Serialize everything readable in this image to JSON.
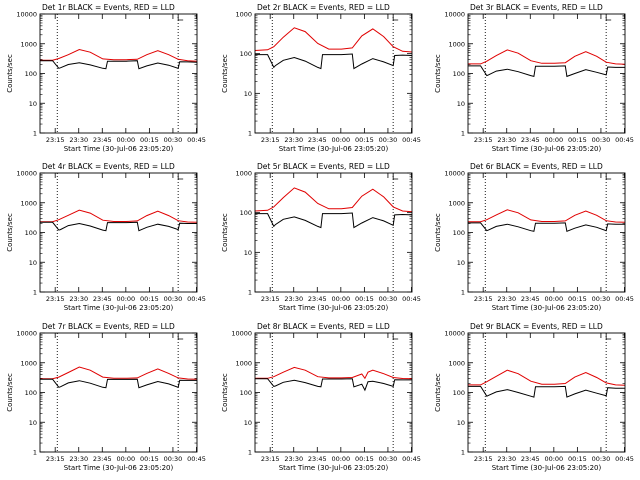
{
  "figure": {
    "colors": {
      "events": "#000000",
      "lld": "#e00000",
      "background": "#ffffff"
    },
    "panels_per_row": 3
  },
  "chart_data": [
    {
      "type": "line",
      "title": "Det 1r BLACK = Events, RED = LLD",
      "xlabel": "Start Time (30-Jul-06 23:05:20)",
      "ylabel": "Counts/sec",
      "yscale": "log",
      "ylim": [
        1,
        10000
      ],
      "ytick_labels": [
        "1",
        "10",
        "100",
        "1000",
        "10000"
      ],
      "xtick_labels": [
        "23:15",
        "23:30",
        "23:45",
        "00:00",
        "00:15",
        "00:30",
        "00:45"
      ],
      "x_unit": "minutes since 23:05:20",
      "xlim": [
        0,
        100
      ],
      "xtick_values": [
        9.67,
        24.67,
        39.67,
        54.67,
        69.67,
        84.67,
        99.67
      ],
      "vlines": [
        11,
        88
      ],
      "series": [
        {
          "name": "LLD",
          "x": [
            0,
            8,
            12,
            18,
            25,
            32,
            40,
            47,
            55,
            62,
            68,
            75,
            82,
            88,
            94,
            100
          ],
          "y": [
            280,
            280,
            320,
            430,
            640,
            520,
            310,
            290,
            290,
            300,
            430,
            590,
            430,
            300,
            270,
            260
          ]
        },
        {
          "name": "Events",
          "x": [
            0,
            8,
            12,
            13,
            18,
            25,
            32,
            40,
            42,
            43,
            55,
            62,
            63,
            68,
            75,
            82,
            88,
            89,
            94,
            100
          ],
          "y": [
            270,
            270,
            150,
            155,
            200,
            230,
            195,
            150,
            145,
            260,
            260,
            270,
            145,
            180,
            225,
            190,
            150,
            250,
            245,
            240
          ]
        }
      ]
    },
    {
      "type": "line",
      "title": "Det 2r BLACK = Events, RED = LLD",
      "xlabel": "Start Time (30-Jul-06 23:05:20)",
      "ylabel": "Counts/sec",
      "yscale": "log",
      "ylim": [
        1,
        1000
      ],
      "ytick_labels": [
        "1",
        "10",
        "100",
        "1000"
      ],
      "xtick_labels": [
        "23:15",
        "23:30",
        "23:45",
        "00:00",
        "00:15",
        "00:30",
        "00:45"
      ],
      "x_unit": "minutes since 23:05:20",
      "xlim": [
        0,
        100
      ],
      "xtick_values": [
        9.67,
        24.67,
        39.67,
        54.67,
        69.67,
        84.67,
        99.67
      ],
      "vlines": [
        11,
        88
      ],
      "series": [
        {
          "name": "LLD",
          "x": [
            0,
            8,
            12,
            18,
            25,
            32,
            40,
            47,
            55,
            62,
            68,
            75,
            82,
            88,
            94,
            100
          ],
          "y": [
            120,
            125,
            150,
            260,
            450,
            360,
            180,
            130,
            130,
            140,
            280,
            420,
            270,
            150,
            115,
            110
          ]
        },
        {
          "name": "Events",
          "x": [
            0,
            8,
            12,
            13,
            18,
            25,
            32,
            40,
            42,
            43,
            55,
            62,
            63,
            68,
            75,
            82,
            88,
            89,
            94,
            100
          ],
          "y": [
            95,
            95,
            45,
            50,
            68,
            80,
            65,
            45,
            42,
            95,
            95,
            98,
            42,
            55,
            75,
            62,
            50,
            90,
            92,
            90
          ]
        }
      ]
    },
    {
      "type": "line",
      "title": "Det 3r BLACK = Events, RED = LLD",
      "xlabel": "Start Time (30-Jul-06 23:05:20)",
      "ylabel": "Counts/sec",
      "yscale": "log",
      "ylim": [
        1,
        10000
      ],
      "ytick_labels": [
        "1",
        "10",
        "100",
        "1000",
        "10000"
      ],
      "xtick_labels": [
        "23:15",
        "23:30",
        "23:45",
        "00:00",
        "00:15",
        "00:30",
        "00:45"
      ],
      "x_unit": "minutes since 23:05:20",
      "xlim": [
        0,
        100
      ],
      "xtick_values": [
        9.67,
        24.67,
        39.67,
        54.67,
        69.67,
        84.67,
        99.67
      ],
      "vlines": [
        11,
        88
      ],
      "series": [
        {
          "name": "LLD",
          "x": [
            0,
            8,
            12,
            18,
            25,
            32,
            40,
            47,
            55,
            62,
            68,
            75,
            82,
            88,
            94,
            100
          ],
          "y": [
            210,
            210,
            260,
            400,
            620,
            480,
            270,
            220,
            220,
            230,
            380,
            540,
            380,
            240,
            210,
            205
          ]
        },
        {
          "name": "Events",
          "x": [
            0,
            8,
            12,
            13,
            18,
            25,
            32,
            40,
            42,
            43,
            55,
            62,
            63,
            68,
            75,
            82,
            88,
            89,
            94,
            100
          ],
          "y": [
            180,
            180,
            85,
            90,
            120,
            140,
            115,
            85,
            80,
            175,
            175,
            180,
            80,
            100,
            135,
            110,
            90,
            165,
            160,
            160
          ]
        }
      ]
    },
    {
      "type": "line",
      "title": "Det 4r BLACK = Events, RED = LLD",
      "xlabel": "Start Time (30-Jul-06 23:05:20)",
      "ylabel": "Counts/sec",
      "yscale": "log",
      "ylim": [
        1,
        10000
      ],
      "ytick_labels": [
        "1",
        "10",
        "100",
        "1000",
        "10000"
      ],
      "xtick_labels": [
        "23:15",
        "23:30",
        "23:45",
        "00:00",
        "00:15",
        "00:30",
        "00:45"
      ],
      "x_unit": "minutes since 23:05:20",
      "xlim": [
        0,
        100
      ],
      "xtick_values": [
        9.67,
        24.67,
        39.67,
        54.67,
        69.67,
        84.67,
        99.67
      ],
      "vlines": [
        11,
        88
      ],
      "series": [
        {
          "name": "LLD",
          "x": [
            0,
            8,
            12,
            18,
            25,
            32,
            40,
            47,
            55,
            62,
            68,
            75,
            82,
            88,
            94,
            100
          ],
          "y": [
            230,
            230,
            270,
            380,
            560,
            450,
            260,
            235,
            235,
            245,
            370,
            520,
            370,
            250,
            225,
            220
          ]
        },
        {
          "name": "Events",
          "x": [
            0,
            8,
            12,
            13,
            18,
            25,
            32,
            40,
            42,
            43,
            55,
            62,
            63,
            68,
            75,
            82,
            88,
            89,
            94,
            100
          ],
          "y": [
            220,
            220,
            120,
            125,
            170,
            200,
            165,
            120,
            115,
            215,
            215,
            220,
            115,
            150,
            190,
            160,
            125,
            205,
            200,
            200
          ]
        }
      ]
    },
    {
      "type": "line",
      "title": "Det 5r BLACK = Events, RED = LLD",
      "xlabel": "Start Time (30-Jul-06 23:05:20)",
      "ylabel": "Counts/sec",
      "yscale": "log",
      "ylim": [
        1,
        1000
      ],
      "ytick_labels": [
        "1",
        "10",
        "100",
        "1000"
      ],
      "xtick_labels": [
        "23:15",
        "23:30",
        "23:45",
        "00:00",
        "00:15",
        "00:30",
        "00:45"
      ],
      "x_unit": "minutes since 23:05:20",
      "xlim": [
        0,
        100
      ],
      "xtick_values": [
        9.67,
        24.67,
        39.67,
        54.67,
        69.67,
        84.67,
        99.67
      ],
      "vlines": [
        11,
        88
      ],
      "series": [
        {
          "name": "LLD",
          "x": [
            0,
            8,
            12,
            18,
            25,
            32,
            40,
            47,
            55,
            62,
            68,
            75,
            82,
            88,
            94,
            100
          ],
          "y": [
            110,
            115,
            140,
            240,
            420,
            330,
            170,
            125,
            125,
            135,
            260,
            390,
            250,
            140,
            110,
            105
          ]
        },
        {
          "name": "Events",
          "x": [
            0,
            8,
            12,
            13,
            18,
            25,
            32,
            40,
            42,
            43,
            55,
            62,
            63,
            68,
            75,
            82,
            88,
            89,
            94,
            100
          ],
          "y": [
            95,
            95,
            45,
            50,
            68,
            78,
            64,
            45,
            42,
            95,
            95,
            98,
            42,
            55,
            75,
            62,
            48,
            88,
            90,
            88
          ]
        }
      ]
    },
    {
      "type": "line",
      "title": "Det 6r BLACK = Events, RED = LLD",
      "xlabel": "Start Time (30-Jul-06 23:05:20)",
      "ylabel": "Counts/sec",
      "yscale": "log",
      "ylim": [
        1,
        10000
      ],
      "ytick_labels": [
        "1",
        "10",
        "100",
        "1000",
        "10000"
      ],
      "xtick_labels": [
        "23:15",
        "23:30",
        "23:45",
        "00:00",
        "00:15",
        "00:30",
        "00:45"
      ],
      "x_unit": "minutes since 23:05:20",
      "xlim": [
        0,
        100
      ],
      "xtick_values": [
        9.67,
        24.67,
        39.67,
        54.67,
        69.67,
        84.67,
        99.67
      ],
      "vlines": [
        11,
        88
      ],
      "series": [
        {
          "name": "LLD",
          "x": [
            0,
            8,
            12,
            18,
            25,
            32,
            40,
            47,
            55,
            62,
            68,
            75,
            82,
            88,
            94,
            100
          ],
          "y": [
            230,
            230,
            270,
            390,
            580,
            460,
            265,
            235,
            235,
            245,
            380,
            530,
            380,
            250,
            225,
            220
          ]
        },
        {
          "name": "Events",
          "x": [
            0,
            8,
            12,
            13,
            18,
            25,
            32,
            40,
            42,
            43,
            55,
            62,
            63,
            68,
            75,
            82,
            88,
            89,
            94,
            100
          ],
          "y": [
            210,
            210,
            115,
            120,
            160,
            190,
            155,
            115,
            110,
            205,
            205,
            210,
            110,
            140,
            180,
            150,
            115,
            195,
            190,
            190
          ]
        }
      ]
    },
    {
      "type": "line",
      "title": "Det 7r BLACK = Events, RED = LLD",
      "xlabel": "Start Time (30-Jul-06 23:05:20)",
      "ylabel": "Counts/sec",
      "yscale": "log",
      "ylim": [
        1,
        10000
      ],
      "ytick_labels": [
        "1",
        "10",
        "100",
        "1000",
        "10000"
      ],
      "xtick_labels": [
        "23:15",
        "23:30",
        "23:45",
        "00:00",
        "00:15",
        "00:30",
        "00:45"
      ],
      "x_unit": "minutes since 23:05:20",
      "xlim": [
        0,
        100
      ],
      "xtick_values": [
        9.67,
        24.67,
        39.67,
        54.67,
        69.67,
        84.67,
        99.67
      ],
      "vlines": [
        11,
        88
      ],
      "series": [
        {
          "name": "LLD",
          "x": [
            0,
            8,
            12,
            18,
            25,
            32,
            40,
            47,
            55,
            62,
            68,
            75,
            82,
            88,
            94,
            100
          ],
          "y": [
            290,
            290,
            330,
            470,
            720,
            560,
            330,
            300,
            300,
            310,
            440,
            620,
            440,
            310,
            285,
            280
          ]
        },
        {
          "name": "Events",
          "x": [
            0,
            8,
            12,
            13,
            18,
            25,
            32,
            40,
            42,
            43,
            55,
            62,
            63,
            68,
            75,
            82,
            88,
            89,
            94,
            100
          ],
          "y": [
            280,
            280,
            150,
            155,
            210,
            250,
            205,
            150,
            145,
            275,
            275,
            280,
            145,
            180,
            235,
            195,
            150,
            260,
            255,
            255
          ]
        }
      ]
    },
    {
      "type": "line",
      "title": "Det 8r BLACK = Events, RED = LLD",
      "xlabel": "Start Time (30-Jul-06 23:05:20)",
      "ylabel": "Counts/sec",
      "yscale": "log",
      "ylim": [
        1,
        10000
      ],
      "ytick_labels": [
        "1",
        "10",
        "100",
        "1000",
        "10000"
      ],
      "xtick_labels": [
        "23:15",
        "23:30",
        "23:45",
        "00:00",
        "00:15",
        "00:30",
        "00:45"
      ],
      "x_unit": "minutes since 23:05:20",
      "xlim": [
        0,
        100
      ],
      "xtick_values": [
        9.67,
        24.67,
        39.67,
        54.67,
        69.67,
        84.67,
        99.67
      ],
      "vlines": [
        11,
        88
      ],
      "series": [
        {
          "name": "LLD",
          "x": [
            0,
            8,
            12,
            18,
            25,
            32,
            40,
            47,
            55,
            62,
            68,
            70,
            72,
            75,
            82,
            88,
            94,
            100
          ],
          "y": [
            300,
            300,
            340,
            480,
            700,
            560,
            340,
            310,
            310,
            320,
            420,
            300,
            480,
            560,
            430,
            320,
            295,
            290
          ]
        },
        {
          "name": "Events",
          "x": [
            0,
            8,
            12,
            13,
            18,
            25,
            32,
            40,
            42,
            43,
            55,
            62,
            63,
            68,
            70,
            72,
            75,
            82,
            88,
            89,
            94,
            100
          ],
          "y": [
            290,
            290,
            160,
            165,
            220,
            260,
            215,
            160,
            155,
            285,
            285,
            290,
            155,
            190,
            120,
            230,
            240,
            200,
            160,
            270,
            265,
            265
          ]
        }
      ]
    },
    {
      "type": "line",
      "title": "Det 9r BLACK = Events, RED = LLD",
      "xlabel": "Start Time (30-Jul-06 23:05:20)",
      "ylabel": "Counts/sec",
      "yscale": "log",
      "ylim": [
        1,
        10000
      ],
      "ytick_labels": [
        "1",
        "10",
        "100",
        "1000",
        "10000"
      ],
      "xtick_labels": [
        "23:15",
        "23:30",
        "23:45",
        "00:00",
        "00:15",
        "00:30",
        "00:45"
      ],
      "x_unit": "minutes since 23:05:20",
      "xlim": [
        0,
        100
      ],
      "xtick_values": [
        9.67,
        24.67,
        39.67,
        54.67,
        69.67,
        84.67,
        99.67
      ],
      "vlines": [
        11,
        88
      ],
      "series": [
        {
          "name": "LLD",
          "x": [
            0,
            8,
            12,
            18,
            25,
            32,
            40,
            47,
            55,
            62,
            68,
            75,
            82,
            88,
            94,
            100
          ],
          "y": [
            180,
            180,
            230,
            350,
            560,
            430,
            240,
            190,
            190,
            200,
            330,
            470,
            320,
            210,
            180,
            175
          ]
        },
        {
          "name": "Events",
          "x": [
            0,
            8,
            12,
            13,
            18,
            25,
            32,
            40,
            42,
            43,
            55,
            62,
            63,
            68,
            75,
            82,
            88,
            89,
            94,
            100
          ],
          "y": [
            160,
            160,
            75,
            80,
            105,
            125,
            100,
            75,
            70,
            155,
            155,
            160,
            70,
            90,
            120,
            95,
            78,
            145,
            140,
            140
          ]
        }
      ]
    }
  ]
}
